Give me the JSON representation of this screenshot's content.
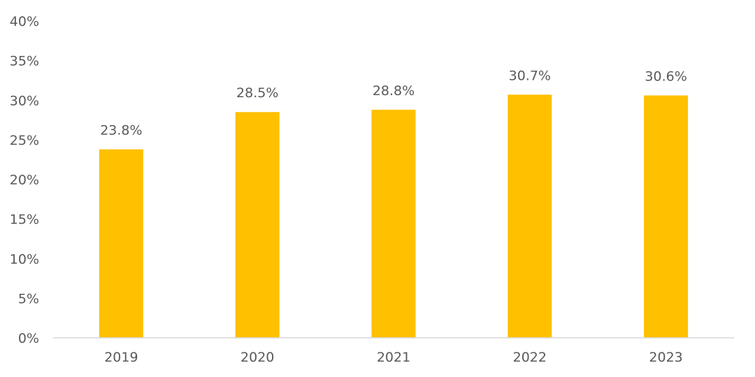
{
  "chart_data": {
    "type": "bar",
    "title": "",
    "xlabel": "",
    "ylabel": "",
    "categories": [
      "2019",
      "2020",
      "2021",
      "2022",
      "2023"
    ],
    "values": [
      23.8,
      28.5,
      28.8,
      30.7,
      30.6
    ],
    "data_labels": [
      "23.8%",
      "28.5%",
      "28.8%",
      "30.7%",
      "30.6%"
    ],
    "ylim": [
      0,
      40
    ],
    "y_ticks": [
      0,
      5,
      10,
      15,
      20,
      25,
      30,
      35,
      40
    ],
    "y_tick_labels": [
      "0%",
      "5%",
      "10%",
      "15%",
      "20%",
      "25%",
      "30%",
      "35%",
      "40%"
    ],
    "grid": false,
    "legend": "none",
    "bar_color": "#FFC000"
  }
}
